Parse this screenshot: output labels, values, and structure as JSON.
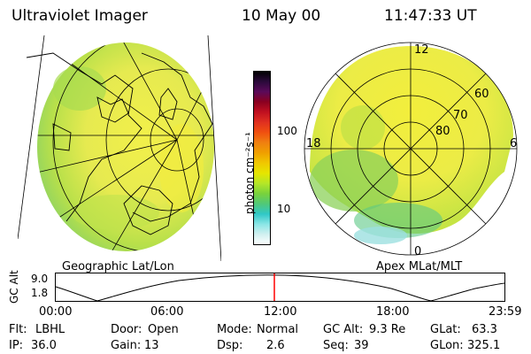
{
  "header": {
    "instrument": "Ultraviolet Imager",
    "date": "10 May 00",
    "time": "11:47:33 UT"
  },
  "left_panel": {
    "caption": "Geographic Lat/Lon"
  },
  "right_panel": {
    "caption": "Apex MLat/MLT",
    "mlt_labels": {
      "top": "12",
      "left": "18",
      "right": "6",
      "bottom": "0"
    },
    "lat_labels": [
      "60",
      "70",
      "80"
    ]
  },
  "colorbar": {
    "label": "photon cm⁻²s⁻¹",
    "tick_100": "100",
    "tick_10": "10",
    "colors": [
      "#000000",
      "#2a0a3a",
      "#5a0a5a",
      "#8a0020",
      "#c01020",
      "#e03020",
      "#f05010",
      "#f08010",
      "#f0a000",
      "#f0c800",
      "#e6e600",
      "#b4e628",
      "#78d23c",
      "#50c878",
      "#30c8c8",
      "#8ce6e6",
      "#d2f0f0",
      "#ffffff"
    ]
  },
  "timeline": {
    "ylabel": "GC Alt",
    "ytick_top": "9.0",
    "ytick_bottom": "1.8",
    "xticks": [
      "00:00",
      "06:00",
      "12:00",
      "18:00",
      "23:59"
    ],
    "marker_color": "#ff0000"
  },
  "info": {
    "filter_label": "Flt:",
    "filter_value": "LBHL",
    "ip_label": "IP:",
    "ip_value": "36.0",
    "door_label": "Door:",
    "door_value": "Open",
    "gain_label": "Gain:",
    "gain_value": "13",
    "mode_label": "Mode:",
    "mode_value": "Normal",
    "dsp_label": "Dsp:",
    "dsp_value": "2.6",
    "gcalt_label": "GC Alt:",
    "gcalt_value": "9.3 Re",
    "seq_label": "Seq:",
    "seq_value": "39",
    "glat_label": "GLat:",
    "glat_value": "63.3",
    "glon_label": "GLon:",
    "glon_value": "325.1"
  }
}
